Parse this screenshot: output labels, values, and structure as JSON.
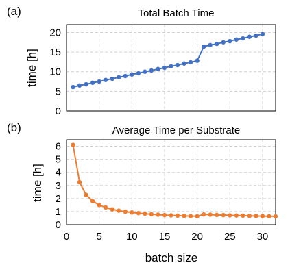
{
  "chart_data": [
    {
      "type": "line",
      "panel": "(a)",
      "title": "Total Batch Time",
      "xlabel": "",
      "ylabel": "time [h]",
      "xlim": [
        0,
        32
      ],
      "ylim": [
        0,
        22
      ],
      "yticks": [
        0,
        5,
        10,
        15,
        20
      ],
      "xgrid": [
        0,
        5,
        10,
        15,
        20,
        25,
        30
      ],
      "grid": true,
      "color": "#4472C4",
      "series": [
        {
          "x": [
            1,
            2,
            3,
            4,
            5,
            6,
            7,
            8,
            9,
            10,
            11,
            12,
            13,
            14,
            15,
            16,
            17,
            18,
            19,
            20,
            21,
            22,
            23,
            24,
            25,
            26,
            27,
            28,
            29,
            30
          ],
          "values": [
            6.1,
            6.5,
            6.8,
            7.2,
            7.5,
            7.9,
            8.2,
            8.6,
            8.9,
            9.3,
            9.6,
            10.0,
            10.3,
            10.7,
            11.0,
            11.4,
            11.7,
            12.1,
            12.4,
            12.8,
            16.4,
            16.8,
            17.1,
            17.5,
            17.8,
            18.2,
            18.5,
            18.9,
            19.2,
            19.6
          ]
        }
      ]
    },
    {
      "type": "line",
      "panel": "(b)",
      "title": "Average Time per Substrate",
      "xlabel": "batch size",
      "ylabel": "time [h]",
      "xlim": [
        0,
        32
      ],
      "ylim": [
        0,
        6.5
      ],
      "xticks": [
        0,
        5,
        10,
        15,
        20,
        25,
        30
      ],
      "yticks": [
        0,
        1,
        2,
        3,
        4,
        5,
        6
      ],
      "grid": true,
      "color": "#ED7D31",
      "series": [
        {
          "x": [
            1,
            2,
            3,
            4,
            5,
            6,
            7,
            8,
            9,
            10,
            11,
            12,
            13,
            14,
            15,
            16,
            17,
            18,
            19,
            20,
            21,
            22,
            23,
            24,
            25,
            26,
            27,
            28,
            29,
            30,
            31,
            32
          ],
          "values": [
            6.1,
            3.25,
            2.27,
            1.8,
            1.5,
            1.31,
            1.17,
            1.07,
            0.99,
            0.93,
            0.88,
            0.83,
            0.79,
            0.76,
            0.73,
            0.71,
            0.69,
            0.67,
            0.65,
            0.64,
            0.78,
            0.76,
            0.74,
            0.73,
            0.71,
            0.7,
            0.69,
            0.67,
            0.66,
            0.65,
            0.64,
            0.63
          ]
        }
      ]
    }
  ]
}
